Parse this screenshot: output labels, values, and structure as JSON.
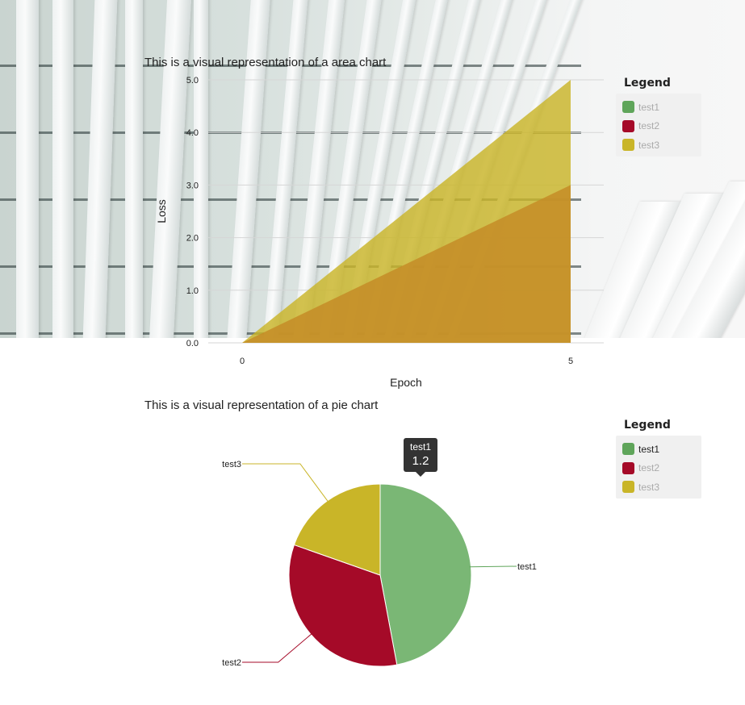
{
  "colors": {
    "test1": "#5fa55a",
    "test2": "#a50a28",
    "test3": "#c9b528",
    "pie_test1": "#7ab775"
  },
  "area_chart": {
    "title": "This is a visual representation of a area chart",
    "legend_title": "Legend"
  },
  "pie_chart": {
    "title": "This is a visual representation of a pie chart",
    "legend_title": "Legend",
    "tooltip": {
      "name": "test1",
      "value": "1.2"
    }
  },
  "chart_data": [
    {
      "type": "area",
      "title": "This is a visual representation of a area chart",
      "xlabel": "Epoch",
      "ylabel": "Loss",
      "x": [
        0,
        5
      ],
      "x_ticks": [
        "0",
        "5"
      ],
      "y_ticks": [
        "0.0",
        "1.0",
        "2.0",
        "3.0",
        "4.0",
        "5.0"
      ],
      "ylim": [
        0,
        5
      ],
      "grid": true,
      "legend_placement": "right",
      "series": [
        {
          "name": "test1",
          "values": [
            0,
            0
          ],
          "visible": false
        },
        {
          "name": "test2",
          "values": [
            0,
            0
          ],
          "visible": false
        },
        {
          "name": "test3",
          "values": [
            0,
            5
          ]
        },
        {
          "name": "test3",
          "values": [
            0,
            3
          ]
        }
      ],
      "legend": [
        {
          "name": "test1",
          "active": false
        },
        {
          "name": "test2",
          "active": false
        },
        {
          "name": "test3",
          "active": false
        }
      ]
    },
    {
      "type": "pie",
      "title": "This is a visual representation of a pie chart",
      "legend_placement": "right",
      "slices": [
        {
          "name": "test1",
          "value": 1.2
        },
        {
          "name": "test2",
          "value": 0.85
        },
        {
          "name": "test3",
          "value": 0.5
        }
      ],
      "legend": [
        {
          "name": "test1",
          "active": true
        },
        {
          "name": "test2",
          "active": false
        },
        {
          "name": "test3",
          "active": false
        }
      ]
    }
  ]
}
